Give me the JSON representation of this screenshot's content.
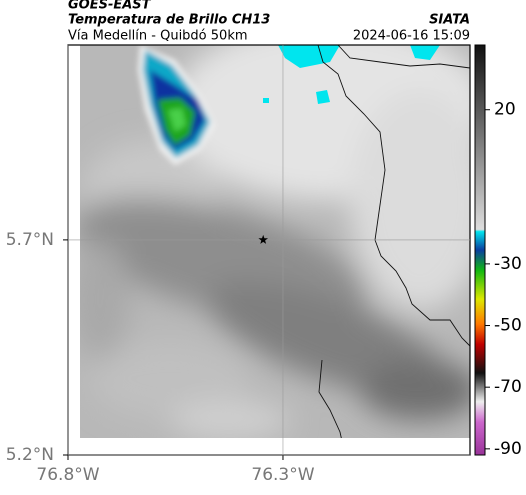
{
  "header": {
    "satellite": "GOES-EAST",
    "product": "Temperatura de Brillo CH13",
    "source": "SIATA",
    "route": "Vía Medellín - Quibdó 50km",
    "timestamp": "2024-06-16 15:09"
  },
  "map": {
    "xlim": [
      -76.8,
      -75.865
    ],
    "ylim": [
      5.2,
      6.153
    ],
    "xticks": [
      {
        "value": -76.8,
        "label": "76.8°W"
      },
      {
        "value": -76.3,
        "label": "76.3°W"
      }
    ],
    "yticks": [
      {
        "value": 5.2,
        "label": "5.2°N"
      },
      {
        "value": 5.7,
        "label": "5.7°N"
      }
    ],
    "marker": {
      "lon": -76.346,
      "lat": 5.7
    }
  },
  "colorbar": {
    "clim": [
      -92,
      41
    ],
    "ticks": [
      20,
      -30,
      -50,
      -70,
      -90
    ]
  }
}
